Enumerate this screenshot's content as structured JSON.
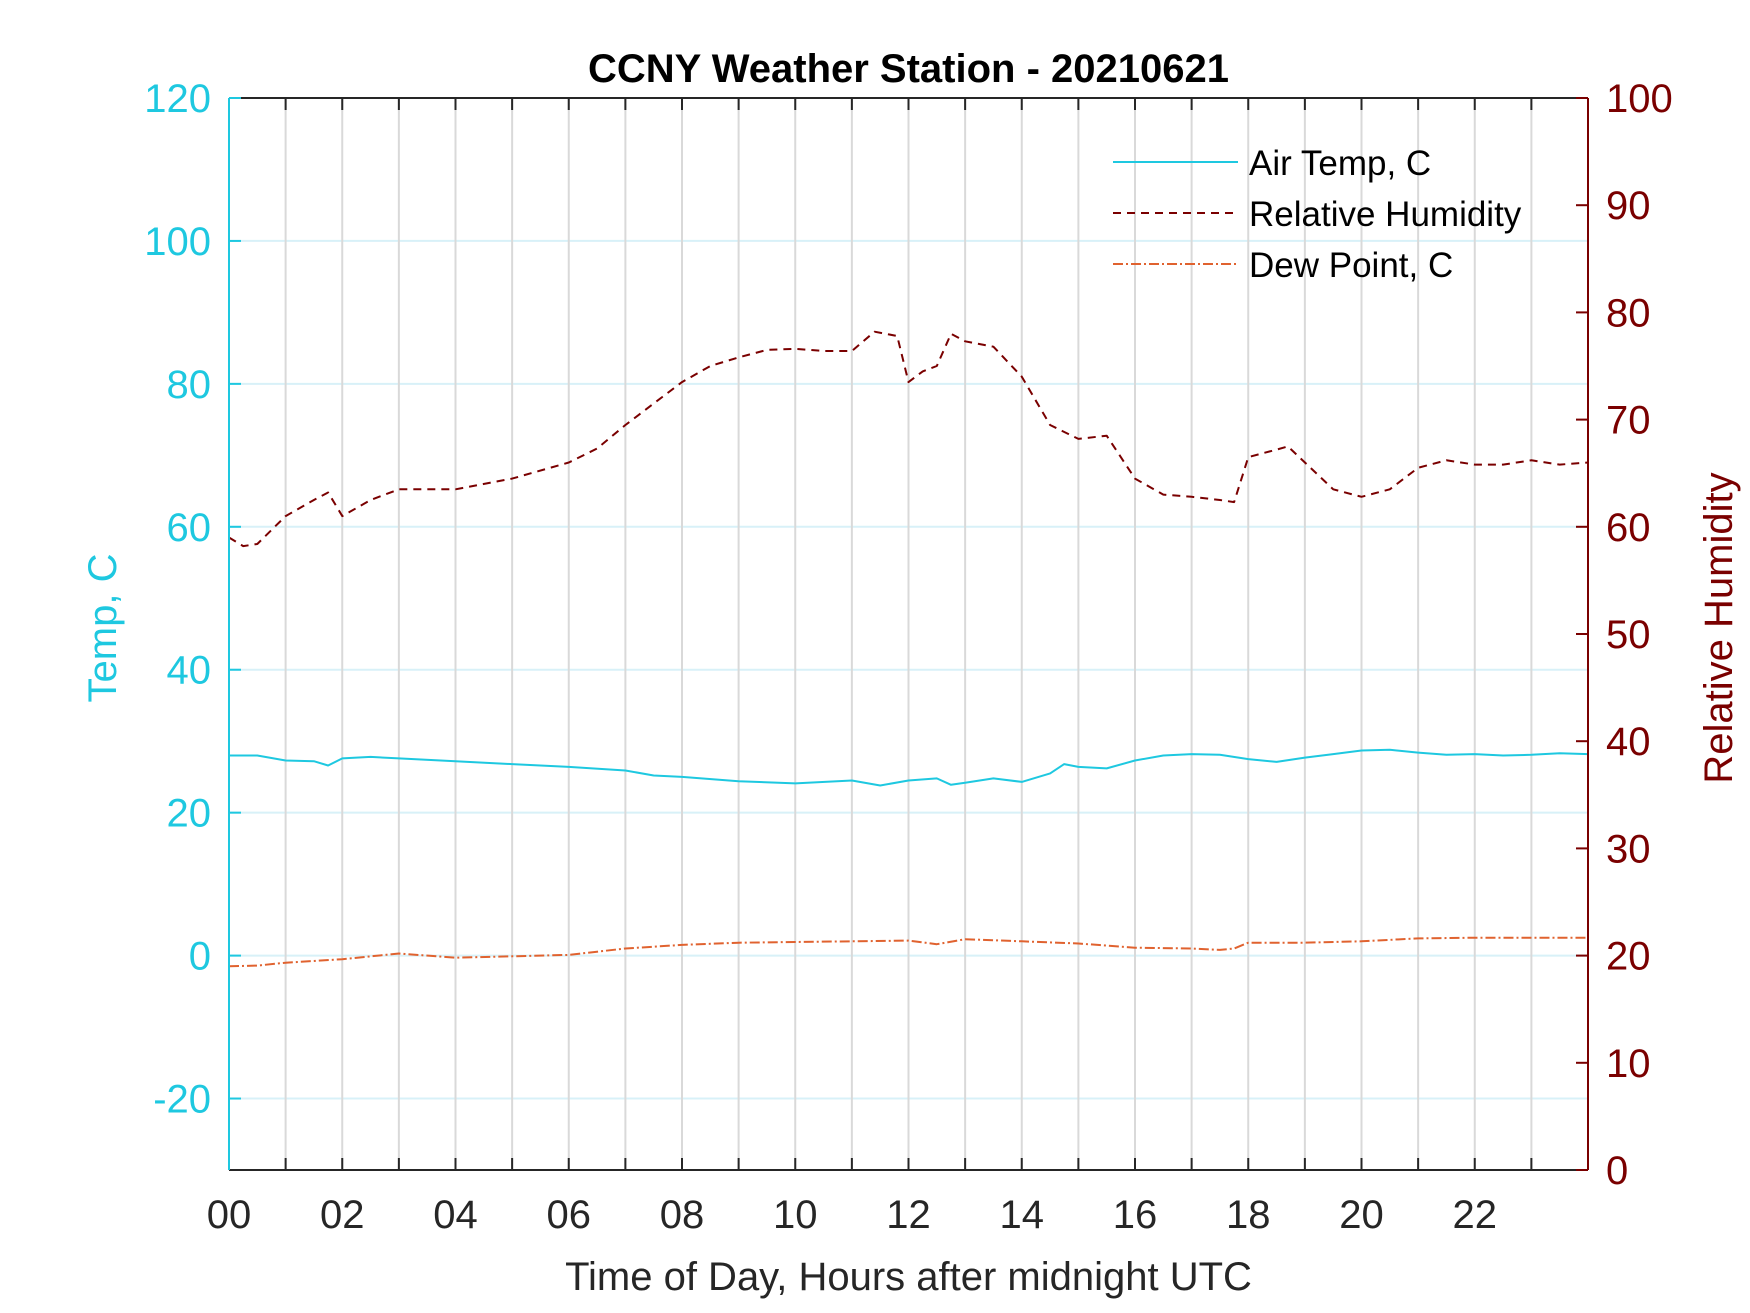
{
  "chart_data": {
    "type": "line",
    "title": "CCNY Weather Station - 20210621",
    "xlabel": "Time of Day, Hours after midnight UTC",
    "ylabel_left": "Temp, C",
    "ylabel_right": "Relative Humidity",
    "xlim": [
      0,
      24
    ],
    "ylim_left": [
      -30,
      120
    ],
    "ylim_right": [
      0,
      100
    ],
    "x_ticks": [
      0,
      2,
      4,
      6,
      8,
      10,
      12,
      14,
      16,
      18,
      20,
      22
    ],
    "x_tick_labels": [
      "00",
      "02",
      "04",
      "06",
      "08",
      "10",
      "12",
      "14",
      "16",
      "18",
      "20",
      "22"
    ],
    "y_left_ticks": [
      -20,
      0,
      20,
      40,
      60,
      80,
      100,
      120
    ],
    "y_left_tick_labels": [
      "-20",
      "0",
      "20",
      "40",
      "60",
      "80",
      "100",
      "120"
    ],
    "y_right_ticks": [
      0,
      10,
      20,
      30,
      40,
      50,
      60,
      70,
      80,
      90,
      100
    ],
    "y_right_tick_labels": [
      "0",
      "10",
      "20",
      "30",
      "40",
      "50",
      "60",
      "70",
      "80",
      "90",
      "100"
    ],
    "grid": true,
    "legend_position": "top-right",
    "colors": {
      "left_axis": "#1ec8e0",
      "right_axis": "#7a0000",
      "air_temp": "#1ec8e0",
      "humidity": "#7a0000",
      "dew_point": "#e0622f",
      "grid_vertical": "#d9d9d9",
      "grid_horizontal": "#d8f1f8"
    },
    "series": [
      {
        "name": "Air Temp, C",
        "axis": "left",
        "style": "solid",
        "x": [
          0,
          0.5,
          1,
          1.5,
          1.75,
          2,
          2.5,
          3,
          4,
          5,
          6,
          7,
          7.5,
          8,
          9,
          10,
          11,
          11.5,
          12,
          12.5,
          12.75,
          13,
          13.5,
          14,
          14.5,
          14.75,
          15,
          15.5,
          16,
          16.5,
          17,
          17.5,
          18,
          18.5,
          19,
          19.5,
          20,
          20.5,
          21,
          21.5,
          22,
          22.5,
          23,
          23.5,
          24
        ],
        "y": [
          28,
          28,
          27.3,
          27.2,
          26.6,
          27.6,
          27.8,
          27.6,
          27.2,
          26.8,
          26.4,
          25.9,
          25.2,
          25,
          24.4,
          24.1,
          24.5,
          23.8,
          24.5,
          24.8,
          23.9,
          24.2,
          24.8,
          24.3,
          25.5,
          26.8,
          26.4,
          26.2,
          27.3,
          28,
          28.2,
          28.1,
          27.5,
          27.1,
          27.7,
          28.2,
          28.7,
          28.8,
          28.4,
          28.1,
          28.2,
          28,
          28.1,
          28.3,
          28.2
        ]
      },
      {
        "name": "Relative Humidity",
        "axis": "right",
        "style": "dashed",
        "x": [
          0,
          0.25,
          0.5,
          1,
          1.5,
          1.75,
          2,
          2.5,
          3,
          4,
          5,
          6,
          6.5,
          7,
          7.5,
          8,
          8.5,
          9,
          9.5,
          10,
          10.5,
          11,
          11.4,
          11.8,
          12,
          12.25,
          12.5,
          12.75,
          13,
          13.5,
          14,
          14.5,
          15,
          15.5,
          16,
          16.5,
          17,
          17.5,
          17.75,
          18,
          18.5,
          18.7,
          19,
          19.5,
          20,
          20.5,
          21,
          21.5,
          22,
          22.5,
          23,
          23.5,
          24
        ],
        "y": [
          59,
          58.2,
          58.4,
          61,
          62.5,
          63.2,
          61,
          62.5,
          63.5,
          63.5,
          64.5,
          66,
          67.3,
          69.5,
          71.5,
          73.5,
          75,
          75.8,
          76.5,
          76.6,
          76.4,
          76.4,
          78.2,
          77.8,
          73.5,
          74.5,
          75,
          78,
          77.3,
          76.8,
          74,
          69.5,
          68.2,
          68.5,
          64.5,
          63,
          62.8,
          62.5,
          62.3,
          66.5,
          67.2,
          67.5,
          66,
          63.5,
          62.8,
          63.5,
          65.5,
          66.2,
          65.8,
          65.8,
          66.2,
          65.8,
          66
        ]
      },
      {
        "name": "Dew Point, C",
        "axis": "left",
        "style": "dashdot",
        "x": [
          0,
          0.5,
          1,
          2,
          3,
          4,
          5,
          6,
          7,
          8,
          9,
          10,
          11,
          12,
          12.5,
          13,
          14,
          15,
          16,
          17,
          17.5,
          17.75,
          18,
          19,
          20,
          21,
          22,
          23,
          24
        ],
        "y": [
          -1.5,
          -1.4,
          -1,
          -0.5,
          0.3,
          -0.3,
          -0.1,
          0.1,
          1,
          1.5,
          1.8,
          1.9,
          2,
          2.1,
          1.6,
          2.3,
          2,
          1.7,
          1.1,
          1,
          0.8,
          1,
          1.8,
          1.8,
          2,
          2.4,
          2.5,
          2.5,
          2.5
        ]
      }
    ]
  }
}
